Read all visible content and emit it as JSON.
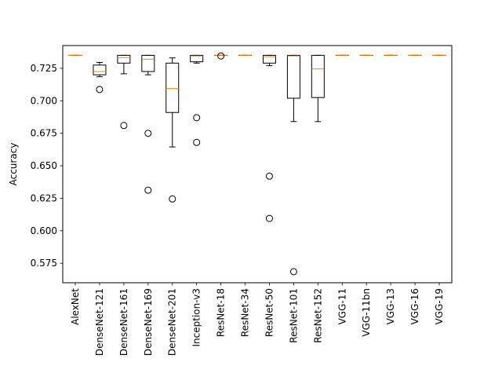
{
  "chart_data": {
    "type": "boxplot",
    "title": "",
    "xlabel": "",
    "ylabel": "Accuracy",
    "ylim": [
      0.56,
      0.7425
    ],
    "yticks": [
      0.575,
      0.6,
      0.625,
      0.65,
      0.675,
      0.7,
      0.725
    ],
    "ytick_labels": [
      "0.575",
      "0.600",
      "0.625",
      "0.650",
      "0.675",
      "0.700",
      "0.725"
    ],
    "grid": false,
    "colors": {
      "box": "#000000",
      "median": "#ff7f0e",
      "outlier": "#000000"
    },
    "boxes": [
      {
        "label": "AlexNet",
        "whisker_low": 0.735,
        "q1": 0.735,
        "median": 0.735,
        "q3": 0.735,
        "whisker_high": 0.735,
        "outliers": []
      },
      {
        "label": "DenseNet-121",
        "whisker_low": 0.7185,
        "q1": 0.72,
        "median": 0.7225,
        "q3": 0.7275,
        "whisker_high": 0.7295,
        "outliers": [
          0.7087
        ]
      },
      {
        "label": "DenseNet-161",
        "whisker_low": 0.7208,
        "q1": 0.729,
        "median": 0.7333,
        "q3": 0.735,
        "whisker_high": 0.735,
        "outliers": [
          0.681
        ]
      },
      {
        "label": "DenseNet-169",
        "whisker_low": 0.72,
        "q1": 0.7225,
        "median": 0.732,
        "q3": 0.735,
        "whisker_high": 0.735,
        "outliers": [
          0.675,
          0.6312
        ]
      },
      {
        "label": "DenseNet-201",
        "whisker_low": 0.6645,
        "q1": 0.691,
        "median": 0.7095,
        "q3": 0.729,
        "whisker_high": 0.733,
        "outliers": [
          0.6245
        ]
      },
      {
        "label": "Inception-v3",
        "whisker_low": 0.729,
        "q1": 0.73,
        "median": 0.7345,
        "q3": 0.735,
        "whisker_high": 0.735,
        "outliers": [
          0.687,
          0.668
        ]
      },
      {
        "label": "ResNet-18",
        "whisker_low": 0.735,
        "q1": 0.735,
        "median": 0.735,
        "q3": 0.735,
        "whisker_high": 0.735,
        "outliers": [
          0.7345
        ]
      },
      {
        "label": "ResNet-34",
        "whisker_low": 0.735,
        "q1": 0.735,
        "median": 0.735,
        "q3": 0.735,
        "whisker_high": 0.735,
        "outliers": []
      },
      {
        "label": "ResNet-50",
        "whisker_low": 0.727,
        "q1": 0.729,
        "median": 0.734,
        "q3": 0.735,
        "whisker_high": 0.735,
        "outliers": [
          0.642,
          0.6095
        ]
      },
      {
        "label": "ResNet-101",
        "whisker_low": 0.684,
        "q1": 0.702,
        "median": 0.7345,
        "q3": 0.735,
        "whisker_high": 0.735,
        "outliers": [
          0.5685
        ]
      },
      {
        "label": "ResNet-152",
        "whisker_low": 0.684,
        "q1": 0.7025,
        "median": 0.7245,
        "q3": 0.735,
        "whisker_high": 0.735,
        "outliers": []
      },
      {
        "label": "VGG-11",
        "whisker_low": 0.735,
        "q1": 0.735,
        "median": 0.735,
        "q3": 0.735,
        "whisker_high": 0.735,
        "outliers": []
      },
      {
        "label": "VGG-11bn",
        "whisker_low": 0.735,
        "q1": 0.735,
        "median": 0.735,
        "q3": 0.735,
        "whisker_high": 0.735,
        "outliers": []
      },
      {
        "label": "VGG-13",
        "whisker_low": 0.735,
        "q1": 0.735,
        "median": 0.735,
        "q3": 0.735,
        "whisker_high": 0.735,
        "outliers": []
      },
      {
        "label": "VGG-16",
        "whisker_low": 0.735,
        "q1": 0.735,
        "median": 0.735,
        "q3": 0.735,
        "whisker_high": 0.735,
        "outliers": []
      },
      {
        "label": "VGG-19",
        "whisker_low": 0.735,
        "q1": 0.735,
        "median": 0.735,
        "q3": 0.735,
        "whisker_high": 0.735,
        "outliers": []
      }
    ]
  }
}
